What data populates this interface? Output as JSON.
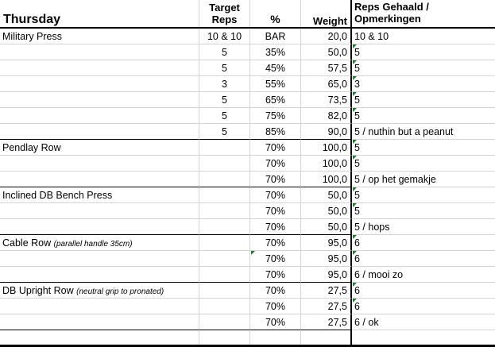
{
  "header": {
    "day": "Thursday",
    "target_reps": "Target Reps",
    "pct": "%",
    "weight": "Weight",
    "reps_done": "Reps Gehaald / Opmerkingen"
  },
  "rows": [
    {
      "exercise": "Military Press",
      "note": "",
      "target": "10 & 10",
      "pct": "BAR",
      "weight": "20,0",
      "done": "10 & 10",
      "flag": false,
      "end": false
    },
    {
      "exercise": "",
      "note": "",
      "target": "5",
      "pct": "35%",
      "weight": "50,0",
      "done": "5",
      "flag": true,
      "end": false
    },
    {
      "exercise": "",
      "note": "",
      "target": "5",
      "pct": "45%",
      "weight": "57,5",
      "done": "5",
      "flag": true,
      "end": false
    },
    {
      "exercise": "",
      "note": "",
      "target": "3",
      "pct": "55%",
      "weight": "65,0",
      "done": "3",
      "flag": true,
      "end": false
    },
    {
      "exercise": "",
      "note": "",
      "target": "5",
      "pct": "65%",
      "weight": "73,5",
      "done": "5",
      "flag": true,
      "end": false
    },
    {
      "exercise": "",
      "note": "",
      "target": "5",
      "pct": "75%",
      "weight": "82,0",
      "done": "5",
      "flag": true,
      "end": false
    },
    {
      "exercise": "",
      "note": "",
      "target": "5",
      "pct": "85%",
      "weight": "90,0",
      "done": "5 / nuthin but a peanut",
      "flag": false,
      "end": true
    },
    {
      "exercise": "Pendlay Row",
      "note": "",
      "target": "",
      "pct": "70%",
      "weight": "100,0",
      "done": "5",
      "flag": true,
      "end": false
    },
    {
      "exercise": "",
      "note": "",
      "target": "",
      "pct": "70%",
      "weight": "100,0",
      "done": "5",
      "flag": true,
      "end": false
    },
    {
      "exercise": "",
      "note": "",
      "target": "",
      "pct": "70%",
      "weight": "100,0",
      "done": "5 / op het gemakje",
      "flag": false,
      "end": true
    },
    {
      "exercise": "Inclined DB Bench Press",
      "note": "",
      "target": "",
      "pct": "70%",
      "weight": "50,0",
      "done": "5",
      "flag": true,
      "end": false
    },
    {
      "exercise": "",
      "note": "",
      "target": "",
      "pct": "70%",
      "weight": "50,0",
      "done": "5",
      "flag": true,
      "end": false
    },
    {
      "exercise": "",
      "note": "",
      "target": "",
      "pct": "70%",
      "weight": "50,0",
      "done": "5 / hops",
      "flag": false,
      "end": true
    },
    {
      "exercise": "Cable Row",
      "note": "(parallel handle 35cm)",
      "target": "",
      "pct": "70%",
      "weight": "95,0",
      "done": "6",
      "flag": true,
      "end": false
    },
    {
      "exercise": "",
      "note": "",
      "target": "",
      "pct": "70%",
      "weight": "95,0",
      "done": "6",
      "flag": true,
      "end": false,
      "pct_flag": true
    },
    {
      "exercise": "",
      "note": "",
      "target": "",
      "pct": "70%",
      "weight": "95,0",
      "done": "6 / mooi zo",
      "flag": false,
      "end": true
    },
    {
      "exercise": "DB Upright Row",
      "note": "(neutral grip to pronated)",
      "target": "",
      "pct": "70%",
      "weight": "27,5",
      "done": "6",
      "flag": true,
      "end": false
    },
    {
      "exercise": "",
      "note": "",
      "target": "",
      "pct": "70%",
      "weight": "27,5",
      "done": "6",
      "flag": true,
      "end": false
    },
    {
      "exercise": "",
      "note": "",
      "target": "",
      "pct": "70%",
      "weight": "27,5",
      "done": "6 / ok",
      "flag": false,
      "end": true
    },
    {
      "exercise": "",
      "note": "",
      "target": "",
      "pct": "",
      "weight": "",
      "done": "",
      "flag": false,
      "end": false
    }
  ],
  "colors": {
    "gridline": "#d4d4d4",
    "error_flag": "#1e7b2e"
  }
}
